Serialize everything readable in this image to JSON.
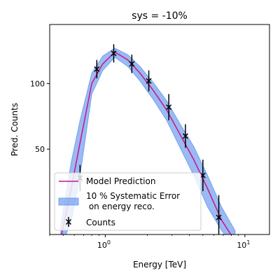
{
  "chart_data": {
    "type": "line",
    "title": "sys = -10%",
    "xlabel": "Energy [TeV]",
    "ylabel": "Pred. Counts",
    "x_scale": "log",
    "xlim": [
      0.4,
      15
    ],
    "ylim": [
      -15,
      145
    ],
    "x_ticks": [
      {
        "value": 1,
        "label": "10",
        "exp": "0"
      },
      {
        "value": 10,
        "label": "10",
        "exp": "1"
      }
    ],
    "y_ticks": [
      {
        "value": 50,
        "label": "50"
      },
      {
        "value": 100,
        "label": "100"
      }
    ],
    "grid": false,
    "legend_position": "lower-left",
    "series": [
      {
        "name": "Model Prediction",
        "kind": "line",
        "color": "#c71585",
        "x": [
          0.48,
          0.57,
          0.66,
          0.8,
          0.96,
          1.17,
          1.45,
          1.77,
          2.2,
          2.75,
          3.4,
          4.3,
          5.4,
          6.8,
          8.5
        ],
        "y": [
          -18,
          20,
          55,
          100,
          115,
          124,
          118,
          108,
          95,
          80,
          62,
          42,
          20,
          -4,
          -20
        ]
      },
      {
        "name": "10 % Systematic Error\n on energy reco.",
        "label_lines": [
          "10 % Systematic Error",
          " on energy reco."
        ],
        "kind": "band",
        "color": "#6495ed",
        "x": [
          0.48,
          0.57,
          0.66,
          0.8,
          0.96,
          1.17,
          1.45,
          1.77,
          2.2,
          2.75,
          3.4,
          4.3,
          5.4,
          6.8,
          8.5
        ],
        "y_low": [
          -25,
          -5,
          30,
          92,
          110,
          120,
          113,
          102,
          88,
          72,
          52,
          30,
          6,
          -12,
          -25
        ],
        "y_high": [
          -8,
          40,
          72,
          108,
          121,
          127,
          122,
          113,
          101,
          87,
          70,
          52,
          30,
          6,
          -12
        ]
      },
      {
        "name": "Counts",
        "kind": "errorbar",
        "color": "#000000",
        "marker": "x",
        "x": [
          0.66,
          0.87,
          1.15,
          1.55,
          2.05,
          2.85,
          3.75,
          5.0,
          6.5
        ],
        "y": [
          28,
          111,
          123,
          115,
          102,
          82,
          60,
          30,
          -2
        ],
        "yerr": [
          10,
          7,
          7,
          7,
          8,
          10,
          9,
          12,
          17
        ]
      }
    ]
  }
}
